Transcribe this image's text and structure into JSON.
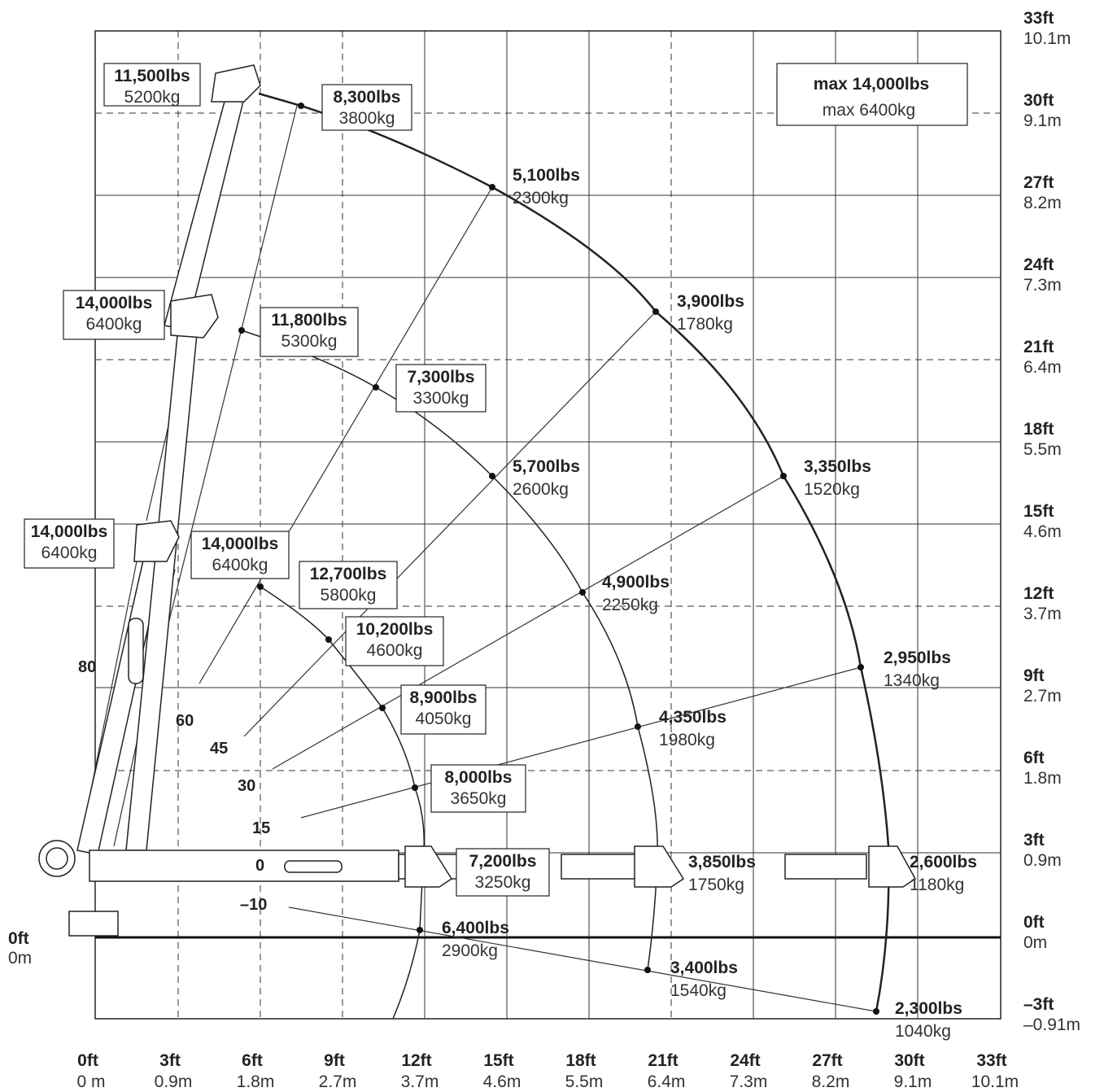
{
  "chart_data": {
    "type": "diagram",
    "y_axis": [
      {
        "ft": "33ft",
        "m": "10.1m"
      },
      {
        "ft": "30ft",
        "m": "9.1m"
      },
      {
        "ft": "27ft",
        "m": "8.2m"
      },
      {
        "ft": "24ft",
        "m": "7.3m"
      },
      {
        "ft": "21ft",
        "m": "6.4m"
      },
      {
        "ft": "18ft",
        "m": "5.5m"
      },
      {
        "ft": "15ft",
        "m": "4.6m"
      },
      {
        "ft": "12ft",
        "m": "3.7m"
      },
      {
        "ft": "9ft",
        "m": "2.7m"
      },
      {
        "ft": "6ft",
        "m": "1.8m"
      },
      {
        "ft": "3ft",
        "m": "0.9m"
      },
      {
        "ft": "0ft",
        "m": "0m"
      },
      {
        "ft": "–3ft",
        "m": "–0.91m"
      }
    ],
    "y_left": {
      "ft": "0ft",
      "m": "0m"
    },
    "x_axis": [
      {
        "ft": "0ft",
        "m": "0 m"
      },
      {
        "ft": "3ft",
        "m": "0.9m"
      },
      {
        "ft": "6ft",
        "m": "1.8m"
      },
      {
        "ft": "9ft",
        "m": "2.7m"
      },
      {
        "ft": "12ft",
        "m": "3.7m"
      },
      {
        "ft": "15ft",
        "m": "4.6m"
      },
      {
        "ft": "18ft",
        "m": "5.5m"
      },
      {
        "ft": "21ft",
        "m": "6.4m"
      },
      {
        "ft": "24ft",
        "m": "7.3m"
      },
      {
        "ft": "27ft",
        "m": "8.2m"
      },
      {
        "ft": "30ft",
        "m": "9.1m"
      },
      {
        "ft": "33ft",
        "m": "10.1m"
      }
    ],
    "max": {
      "lbs": "max 14,000lbs",
      "kg": "max 6400kg"
    },
    "angles": [
      "80",
      "60",
      "45",
      "30",
      "15",
      "0",
      "–10"
    ],
    "loads": [
      {
        "lbs": "11,500lbs",
        "kg": "5200kg"
      },
      {
        "lbs": "8,300lbs",
        "kg": "3800kg"
      },
      {
        "lbs": "5,100lbs",
        "kg": "2300kg"
      },
      {
        "lbs": "3,900lbs",
        "kg": "1780kg"
      },
      {
        "lbs": "3,350lbs",
        "kg": "1520kg"
      },
      {
        "lbs": "2,950lbs",
        "kg": "1340kg"
      },
      {
        "lbs": "2,600lbs",
        "kg": "1180kg"
      },
      {
        "lbs": "2,300lbs",
        "kg": "1040kg"
      },
      {
        "lbs": "14,000lbs",
        "kg": "6400kg"
      },
      {
        "lbs": "11,800lbs",
        "kg": "5300kg"
      },
      {
        "lbs": "7,300lbs",
        "kg": "3300kg"
      },
      {
        "lbs": "5,700lbs",
        "kg": "2600kg"
      },
      {
        "lbs": "4,900lbs",
        "kg": "2250kg"
      },
      {
        "lbs": "4,350lbs",
        "kg": "1980kg"
      },
      {
        "lbs": "3,850lbs",
        "kg": "1750kg"
      },
      {
        "lbs": "3,400lbs",
        "kg": "1540kg"
      },
      {
        "lbs": "14,000lbs",
        "kg": "6400kg"
      },
      {
        "lbs": "14,000lbs",
        "kg": "6400kg"
      },
      {
        "lbs": "12,700lbs",
        "kg": "5800kg"
      },
      {
        "lbs": "10,200lbs",
        "kg": "4600kg"
      },
      {
        "lbs": "8,900lbs",
        "kg": "4050kg"
      },
      {
        "lbs": "8,000lbs",
        "kg": "3650kg"
      },
      {
        "lbs": "7,200lbs",
        "kg": "3250kg"
      },
      {
        "lbs": "6,400lbs",
        "kg": "2900kg"
      }
    ]
  }
}
